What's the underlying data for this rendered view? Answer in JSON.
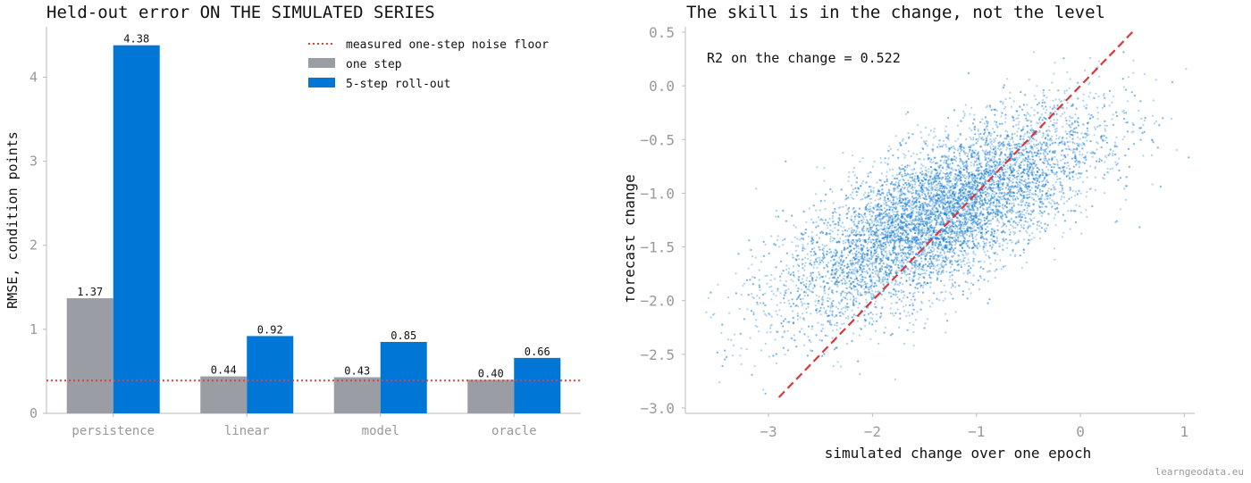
{
  "chart_data": [
    {
      "type": "bar",
      "title": "Held-out error ON THE SIMULATED SERIES",
      "xlabel": "",
      "ylabel": "RMSE, condition points",
      "categories": [
        "persistence",
        "linear",
        "model",
        "oracle"
      ],
      "series": [
        {
          "name": "one step",
          "values": [
            1.37,
            0.44,
            0.43,
            0.4
          ],
          "labels": [
            "1.37",
            "0.44",
            "0.43",
            "0.40"
          ],
          "color": "#9a9ea4"
        },
        {
          "name": "5-step roll-out",
          "values": [
            4.38,
            0.92,
            0.85,
            0.66
          ],
          "labels": [
            "4.38",
            "0.92",
            "0.85",
            "0.66"
          ],
          "color": "#0077d6"
        }
      ],
      "reference_line": {
        "name": "measured one-step noise floor",
        "value": 0.39,
        "color": "#e0403c",
        "style": "dotted"
      },
      "ylim": [
        0,
        4.6
      ],
      "yticks": [
        "0",
        "1",
        "2",
        "3",
        "4"
      ],
      "legend": "top-right",
      "grid": false
    },
    {
      "type": "scatter",
      "title": "The skill is in the change, not the level",
      "xlabel": "simulated change over one epoch",
      "ylabel": "forecast change",
      "xlim": [
        -3.8,
        1.1
      ],
      "ylim": [
        -3.05,
        0.55
      ],
      "xticks": [
        "-3",
        "-2",
        "-1",
        "0",
        "1"
      ],
      "yticks": [
        "-3.0",
        "-2.5",
        "-2.0",
        "-1.5",
        "-1.0",
        "-0.5",
        "0.0",
        "0.5"
      ],
      "annotation": "R2 on the change = 0.522",
      "point_color": "#1a7fd4",
      "cloud": {
        "mean_x": -1.35,
        "mean_y": -1.2,
        "sd_x": 0.75,
        "sd_y": 0.48,
        "r": 0.722,
        "n": 9000
      },
      "reference_line": {
        "x": [
          -2.9,
          0.52
        ],
        "y": [
          -2.9,
          0.52
        ],
        "color": "#d9373a",
        "style": "dashed"
      },
      "grid": false
    }
  ],
  "footer": "learngeodata.eu"
}
